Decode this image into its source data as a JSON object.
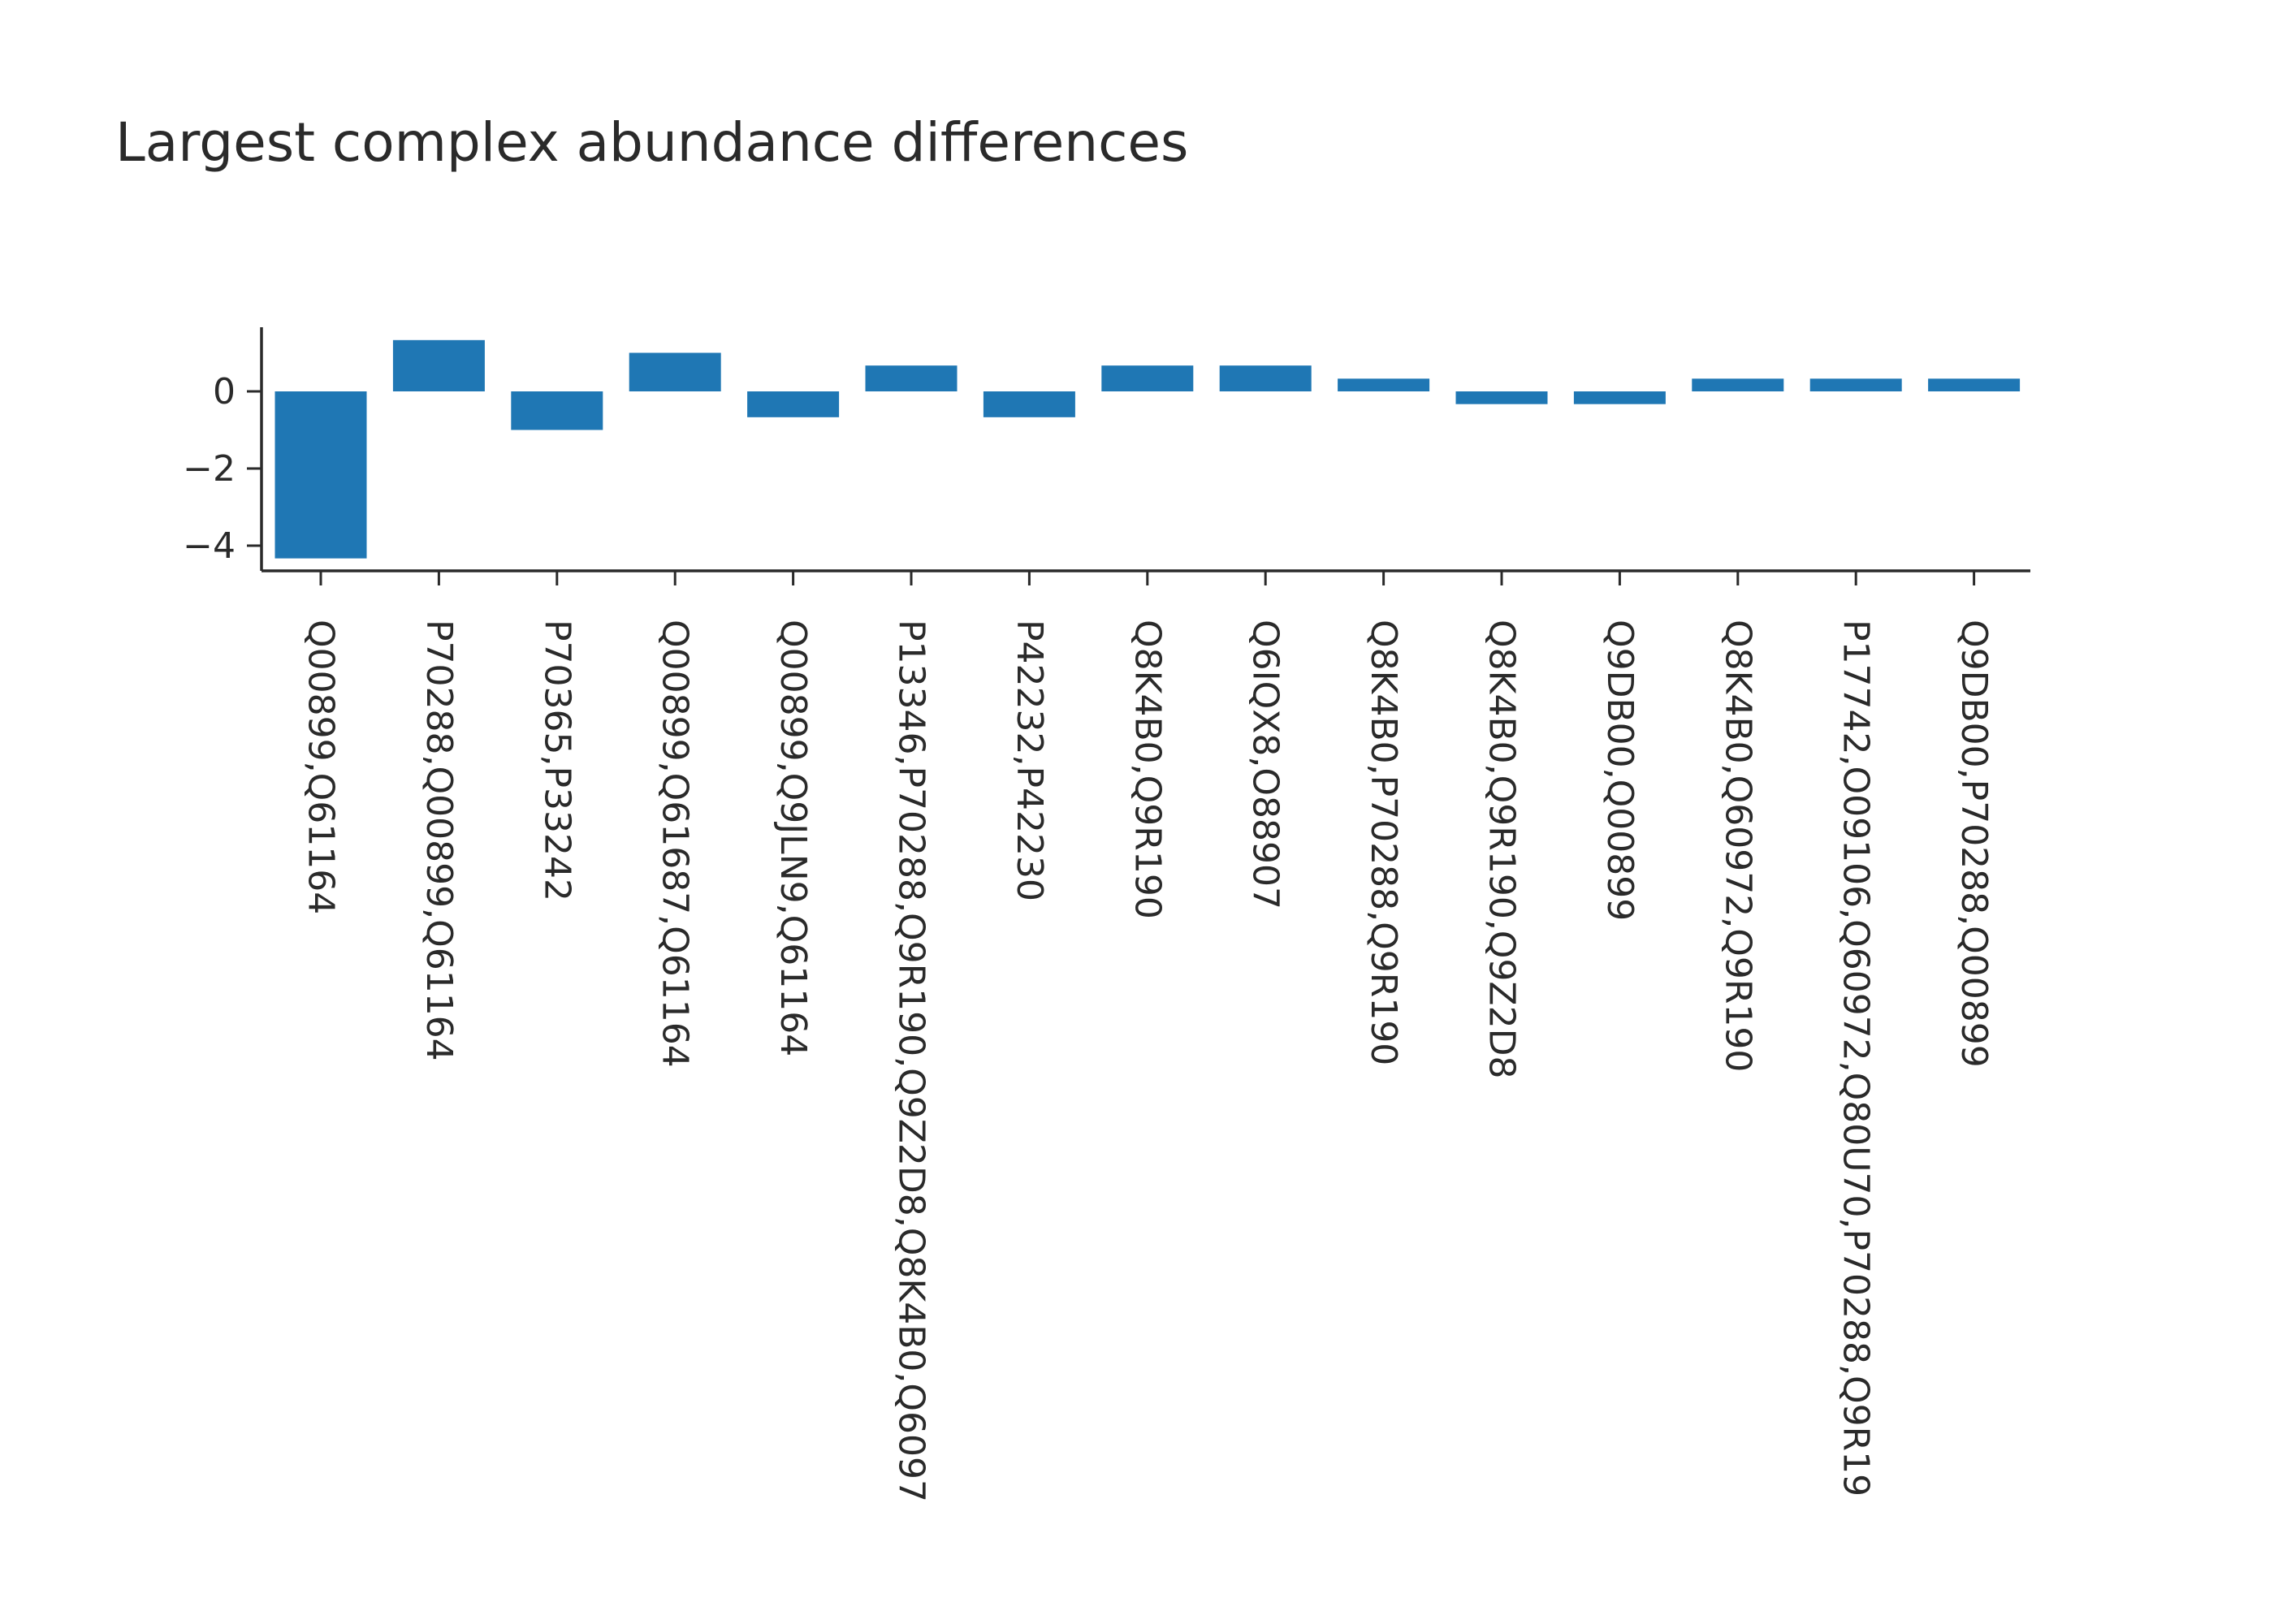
{
  "chart_data": {
    "type": "bar",
    "title": "Largest complex abundance differences",
    "xlabel": "",
    "ylabel": "",
    "ylim": [
      -4.6,
      1.6
    ],
    "yticks": [
      0,
      -2,
      -4
    ],
    "ytick_labels": [
      "0",
      "−2",
      "−4"
    ],
    "bar_color": "#1f77b4",
    "categories": [
      "Q00899,Q61164",
      "P70288,Q00899,Q61164",
      "P70365,P33242",
      "Q00899,Q61687,Q61164",
      "Q00899,Q9JLN9,Q61164",
      "P13346,P70288,Q9R190,Q9Z2D8,Q8K4B0,Q6097",
      "P42232,P42230",
      "Q8K4B0,Q9R190",
      "Q6IQX8,O88907",
      "Q8K4B0,P70288,Q9R190",
      "Q8K4B0,Q9R190,Q9Z2D8",
      "Q9DB00,Q00899",
      "Q8K4B0,Q60972,Q9R190",
      "P17742,O09106,Q60972,Q80U70,P70288,Q9R19",
      "Q9DB00,P70288,Q00899"
    ],
    "values": [
      -4.33,
      1.33,
      -1.0,
      1.0,
      -0.67,
      0.67,
      -0.67,
      0.67,
      0.67,
      0.33,
      -0.33,
      -0.33,
      0.33,
      0.33,
      0.33
    ]
  }
}
